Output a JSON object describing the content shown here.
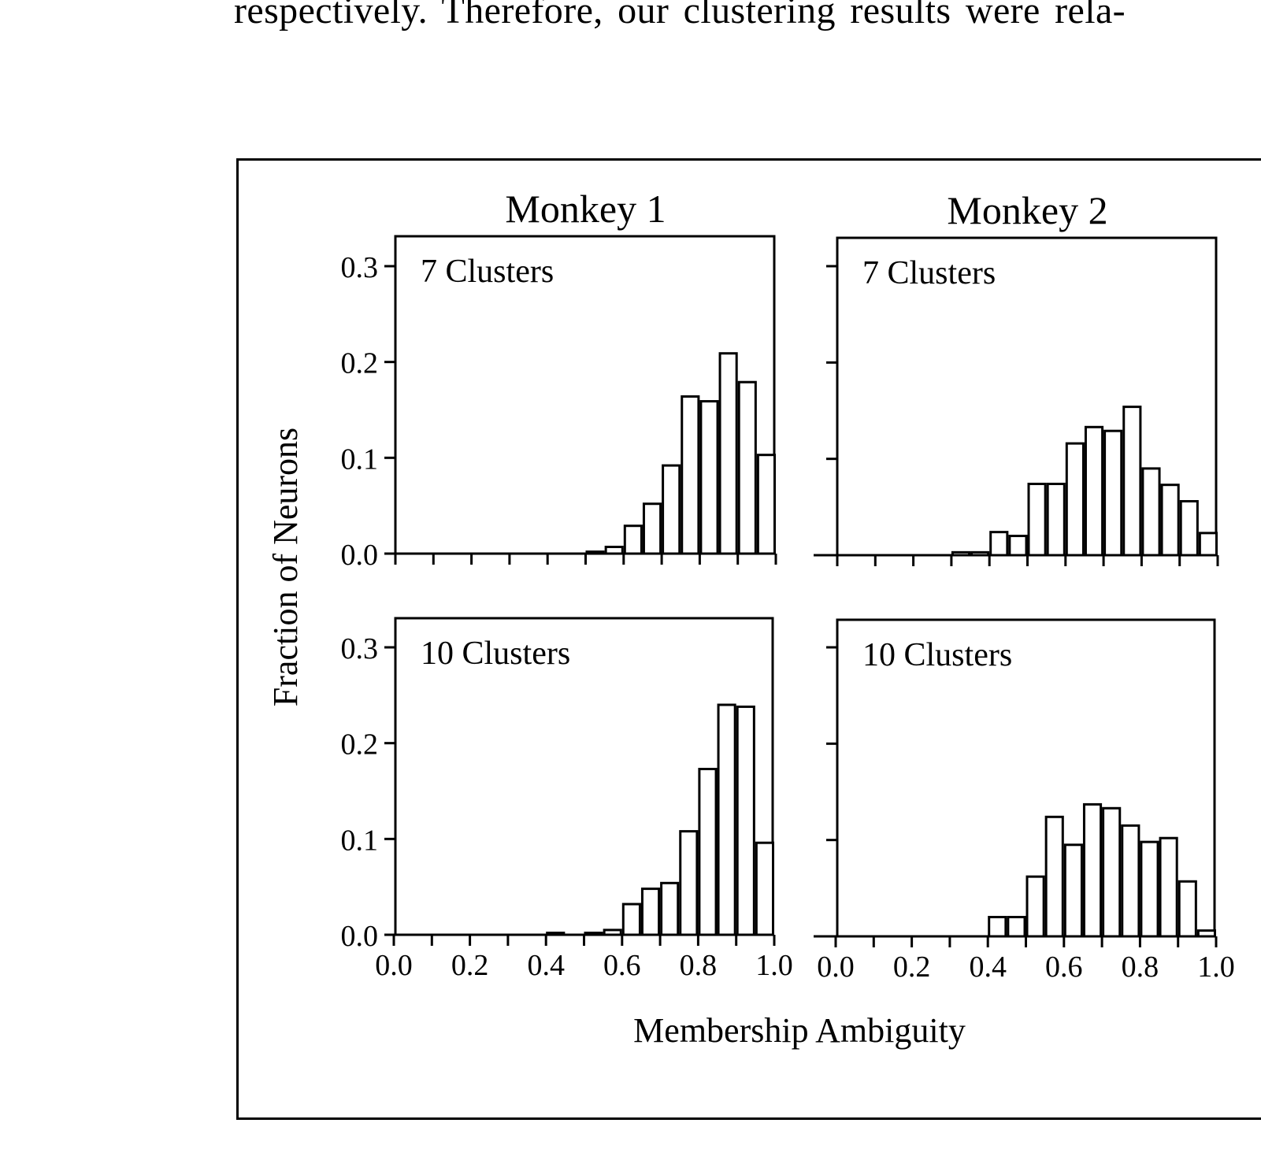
{
  "page_text": {
    "body_line": "respectively. Therefore, our clustering results were rela-"
  },
  "figure": {
    "y_axis_label": "Fraction of Neurons",
    "x_axis_label": "Membership Ambiguity"
  },
  "chart_data": [
    {
      "type": "bar",
      "column_title": "Monkey 1",
      "panel_label": "7 Clusters",
      "bin_width": 0.05,
      "x": [
        0.5,
        0.55,
        0.6,
        0.65,
        0.7,
        0.75,
        0.8,
        0.85,
        0.9,
        0.95
      ],
      "values": [
        0.002,
        0.007,
        0.029,
        0.052,
        0.092,
        0.164,
        0.159,
        0.209,
        0.179,
        0.103
      ],
      "xlim": [
        0.0,
        1.0
      ],
      "ylim": [
        0.0,
        0.3
      ],
      "yticks": [
        "0.0",
        "0.1",
        "0.2",
        "0.3"
      ],
      "xticks": []
    },
    {
      "type": "bar",
      "column_title": "Monkey 2",
      "panel_label": "7 Clusters",
      "bin_width": 0.05,
      "x": [
        0.3,
        0.35,
        0.4,
        0.45,
        0.5,
        0.55,
        0.6,
        0.65,
        0.7,
        0.75,
        0.8,
        0.85,
        0.9,
        0.95
      ],
      "values": [
        0.003,
        0.003,
        0.024,
        0.02,
        0.074,
        0.074,
        0.116,
        0.133,
        0.129,
        0.154,
        0.09,
        0.073,
        0.056,
        0.023
      ],
      "xlim": [
        0.0,
        1.0
      ],
      "ylim": [
        0.0,
        0.3
      ],
      "yticks": [],
      "xticks": []
    },
    {
      "type": "bar",
      "panel_label": "10 Clusters",
      "bin_width": 0.05,
      "x": [
        0.4,
        0.5,
        0.55,
        0.6,
        0.65,
        0.7,
        0.75,
        0.8,
        0.85,
        0.9,
        0.95
      ],
      "values": [
        0.002,
        0.002,
        0.005,
        0.032,
        0.048,
        0.054,
        0.108,
        0.173,
        0.24,
        0.238,
        0.096
      ],
      "xlim": [
        0.0,
        1.0
      ],
      "ylim": [
        0.0,
        0.3
      ],
      "yticks": [
        "0.0",
        "0.1",
        "0.2",
        "0.3"
      ],
      "xticks": [
        "0.0",
        "0.2",
        "0.4",
        "0.6",
        "0.8",
        "1.0"
      ]
    },
    {
      "type": "bar",
      "panel_label": "10 Clusters",
      "bin_width": 0.05,
      "x": [
        0.4,
        0.45,
        0.5,
        0.55,
        0.6,
        0.65,
        0.7,
        0.75,
        0.8,
        0.85,
        0.9,
        0.95
      ],
      "values": [
        0.02,
        0.02,
        0.062,
        0.124,
        0.095,
        0.137,
        0.133,
        0.115,
        0.098,
        0.102,
        0.057,
        0.006
      ],
      "xlim": [
        0.0,
        1.0
      ],
      "ylim": [
        0.0,
        0.3
      ],
      "yticks": [],
      "xticks": [
        "0.0",
        "0.2",
        "0.4",
        "0.6",
        "0.8",
        "1.0"
      ]
    }
  ]
}
